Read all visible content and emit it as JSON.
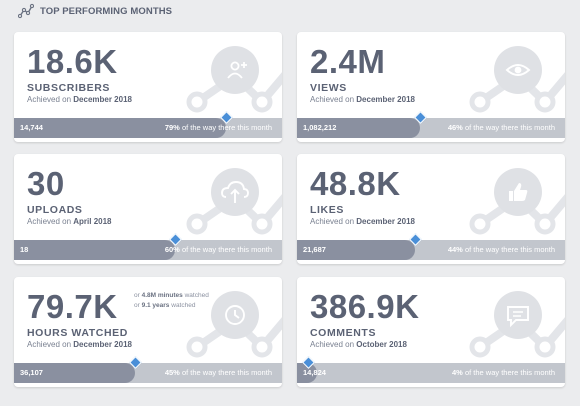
{
  "header": {
    "title": "TOP PERFORMING MONTHS",
    "icon": "line-chart-icon"
  },
  "accent": "#4a8fd8",
  "cards": [
    {
      "value": "18.6K",
      "metric": "SUBSCRIBERS",
      "achieved_prefix": "Achieved on",
      "month": "December 2018",
      "count": "14,744",
      "percent": "79%",
      "percent_suffix": "of the way there this month",
      "progress": 0.79,
      "icon": "add-person-icon"
    },
    {
      "value": "2.4M",
      "metric": "VIEWS",
      "achieved_prefix": "Achieved on",
      "month": "December 2018",
      "count": "1,082,212",
      "percent": "46%",
      "percent_suffix": "of the way there this month",
      "progress": 0.46,
      "icon": "eye-icon"
    },
    {
      "value": "30",
      "metric": "UPLOADS",
      "achieved_prefix": "Achieved on",
      "month": "April 2018",
      "count": "18",
      "percent": "60%",
      "percent_suffix": "of the way there this month",
      "progress": 0.6,
      "icon": "cloud-upload-icon"
    },
    {
      "value": "48.8K",
      "metric": "LIKES",
      "achieved_prefix": "Achieved on",
      "month": "December 2018",
      "count": "21,687",
      "percent": "44%",
      "percent_suffix": "of the way there this month",
      "progress": 0.44,
      "icon": "thumbs-up-icon"
    },
    {
      "value": "79.7K",
      "metric": "HOURS WATCHED",
      "achieved_prefix": "Achieved on",
      "month": "December 2018",
      "count": "36,107",
      "percent": "45%",
      "percent_suffix": "of the way there this month",
      "progress": 0.45,
      "icon": "clock-icon",
      "extra": {
        "l1_pre": "or",
        "l1_val": "4.8M minutes",
        "l1_post": "watched",
        "l2_pre": "or",
        "l2_val": "9.1 years",
        "l2_post": "watched"
      }
    },
    {
      "value": "386.9K",
      "metric": "COMMENTS",
      "achieved_prefix": "Achieved on",
      "month": "October 2018",
      "count": "14,824",
      "percent": "4%",
      "percent_suffix": "of the way there this month",
      "progress": 0.04,
      "icon": "comment-icon"
    }
  ]
}
